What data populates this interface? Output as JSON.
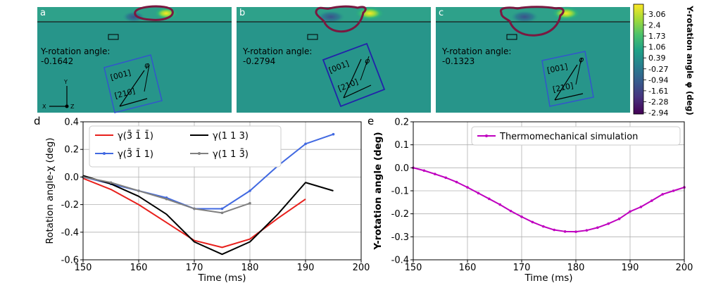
{
  "panels": {
    "a": {
      "letter": "a",
      "angle_title": "Y-rotation angle:",
      "angle_value": "-0.1642"
    },
    "b": {
      "letter": "b",
      "angle_title": "Y-rotation angle:",
      "angle_value": "-0.2794"
    },
    "c": {
      "letter": "c",
      "angle_title": "Y-rotation angle:",
      "angle_value": "-0.1323"
    }
  },
  "inset": {
    "dir_001": "[001]",
    "dir_210": "[210]",
    "phi": "φ"
  },
  "axes_triad": {
    "x": "X",
    "y": "Y",
    "z": "Z"
  },
  "colorbar": {
    "label": "Y-rotation angle φ (deg)",
    "ticks": [
      "3.06",
      "2.4",
      "1.73",
      "1.06",
      "0.39",
      "-0.27",
      "-0.94",
      "-1.61",
      "-2.28",
      "-2.94"
    ],
    "colors": [
      "#fde725",
      "#a0da39",
      "#4ac16d",
      "#1fa187",
      "#277f8e",
      "#365c8d",
      "#46327e",
      "#440154"
    ]
  },
  "chart_data": [
    {
      "panel": "d",
      "type": "line",
      "xlabel": "Time (ms)",
      "ylabel": "Rotation angle-χ (deg)",
      "xlim": [
        150,
        200
      ],
      "ylim": [
        -0.6,
        0.4
      ],
      "xticks": [
        "150",
        "160",
        "170",
        "180",
        "190",
        "200"
      ],
      "yticks": [
        "0.4",
        "0.2",
        "0.0",
        "-0.2",
        "-0.4",
        "-0.6"
      ],
      "grid": true,
      "legend_position": "top-center",
      "series": [
        {
          "name": "γ(3̄ 1̄ 1̄)",
          "color": "#e8201c",
          "markers": false,
          "x": [
            150,
            155,
            160,
            165,
            170,
            175,
            180,
            185,
            190
          ],
          "y": [
            -0.01,
            -0.09,
            -0.2,
            -0.33,
            -0.46,
            -0.51,
            -0.45,
            -0.3,
            -0.16
          ]
        },
        {
          "name": "γ(3̄ 1̄ 1)",
          "color": "#4169e1",
          "markers": true,
          "x": [
            150,
            155,
            160,
            165,
            170,
            175,
            180,
            185,
            190,
            195
          ],
          "y": [
            0.0,
            -0.05,
            -0.1,
            -0.15,
            -0.23,
            -0.23,
            -0.1,
            0.08,
            0.24,
            0.31
          ]
        },
        {
          "name": "γ(1 1 3)",
          "color": "#000000",
          "markers": false,
          "x": [
            150,
            155,
            160,
            165,
            170,
            175,
            180,
            185,
            190,
            195
          ],
          "y": [
            0.01,
            -0.05,
            -0.14,
            -0.27,
            -0.47,
            -0.56,
            -0.47,
            -0.27,
            -0.04,
            -0.1
          ]
        },
        {
          "name": "γ(1 1 3̄)",
          "color": "#808080",
          "markers": true,
          "x": [
            150,
            155,
            160,
            165,
            170,
            175,
            180
          ],
          "y": [
            0.0,
            -0.04,
            -0.1,
            -0.16,
            -0.23,
            -0.26,
            -0.19
          ]
        }
      ]
    },
    {
      "panel": "e",
      "type": "line",
      "xlabel": "Time (ms)",
      "ylabel": "Y-rotation angle (deg)",
      "xlim": [
        150,
        200
      ],
      "ylim": [
        -0.4,
        0.2
      ],
      "xticks": [
        "150",
        "160",
        "170",
        "180",
        "190",
        "200"
      ],
      "yticks": [
        "0.2",
        "0.1",
        "0.0",
        "-0.1",
        "-0.2",
        "-0.3",
        "-0.4"
      ],
      "grid": true,
      "legend_position": "top-right",
      "series": [
        {
          "name": "Thermomechanical simulation",
          "color": "#bf00bf",
          "markers": true,
          "x": [
            150,
            152,
            154,
            156,
            158,
            160,
            162,
            164,
            166,
            168,
            170,
            172,
            174,
            176,
            178,
            180,
            182,
            184,
            186,
            188,
            190,
            192,
            194,
            196,
            198,
            200
          ],
          "y": [
            0.0,
            -0.012,
            -0.027,
            -0.043,
            -0.062,
            -0.085,
            -0.11,
            -0.135,
            -0.16,
            -0.188,
            -0.213,
            -0.236,
            -0.255,
            -0.27,
            -0.277,
            -0.278,
            -0.272,
            -0.26,
            -0.243,
            -0.222,
            -0.19,
            -0.17,
            -0.143,
            -0.115,
            -0.1,
            -0.085
          ]
        }
      ]
    }
  ],
  "panel_labels": {
    "d": "d",
    "e": "e"
  }
}
